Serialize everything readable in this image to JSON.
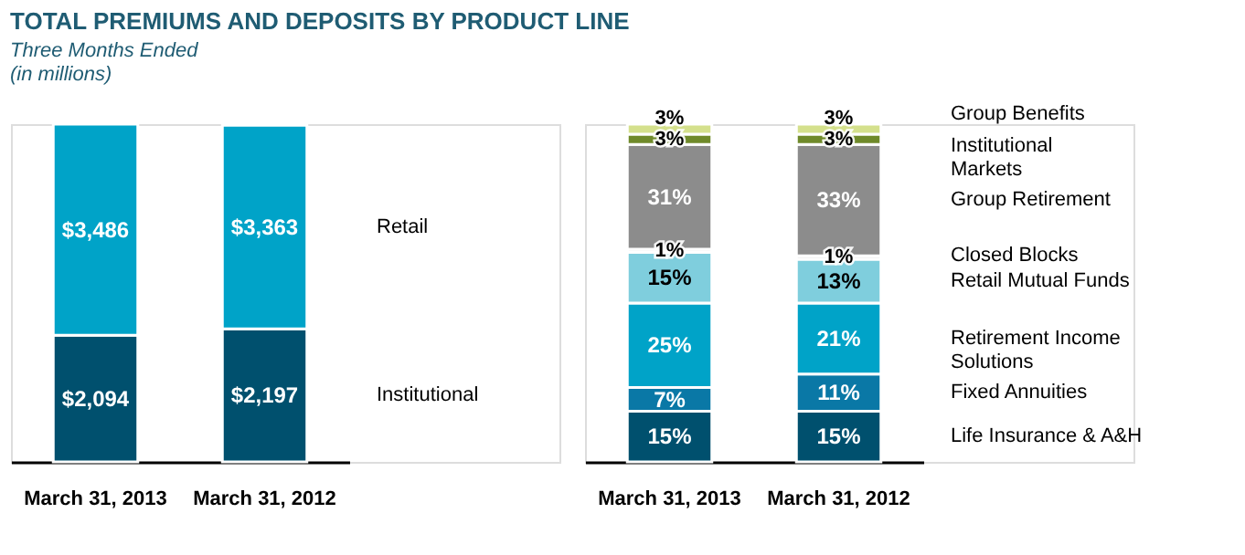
{
  "chart_data": [
    {
      "type": "bar",
      "title": "TOTAL PREMIUMS AND DEPOSITS BY PRODUCT LINE",
      "subtitle": "Three Months Ended",
      "annotations": [
        "(in millions)"
      ],
      "stacked": true,
      "legend": "right",
      "categories": [
        "March 31, 2013",
        "March 31, 2012"
      ],
      "series": [
        {
          "name": "Institutional",
          "color": "#00506e",
          "values": [
            2094,
            2197
          ],
          "value_labels": [
            "$2,094",
            "$2,197"
          ]
        },
        {
          "name": "Retail",
          "color": "#00a3c8",
          "values": [
            3486,
            3363
          ],
          "value_labels": [
            "$3,486",
            "$3,363"
          ]
        }
      ]
    },
    {
      "type": "bar",
      "stacked": true,
      "legend": "right",
      "categories": [
        "March 31, 2013",
        "March 31, 2012"
      ],
      "series": [
        {
          "name": "Life Insurance & A&H",
          "color": "#00506e",
          "values": [
            15,
            15
          ],
          "value_labels": [
            "15%",
            "15%"
          ]
        },
        {
          "name": "Fixed Annuities",
          "color": "#0a78a6",
          "values": [
            7,
            11
          ],
          "value_labels": [
            "7%",
            "11%"
          ]
        },
        {
          "name": "Retirement Income Solutions",
          "color": "#00a3c8",
          "values": [
            25,
            21
          ],
          "value_labels": [
            "25%",
            "21%"
          ]
        },
        {
          "name": "Retail Mutual Funds",
          "color": "#7fcedd",
          "values": [
            15,
            13
          ],
          "value_labels": [
            "15%",
            "13%"
          ]
        },
        {
          "name": "Closed Blocks",
          "color": "#e6e6e6",
          "values": [
            1,
            1
          ],
          "value_labels": [
            "1%",
            "1%"
          ]
        },
        {
          "name": "Group Retirement",
          "color": "#8c8c8c",
          "values": [
            31,
            33
          ],
          "value_labels": [
            "31%",
            "33%"
          ]
        },
        {
          "name": "Institutional Markets",
          "color": "#6f8a2a",
          "values": [
            3,
            3
          ],
          "value_labels": [
            "3%",
            "3%"
          ]
        },
        {
          "name": "Group Benefits",
          "color": "#d4e08c",
          "values": [
            3,
            3
          ],
          "value_labels": [
            "3%",
            "3%"
          ]
        }
      ]
    }
  ]
}
